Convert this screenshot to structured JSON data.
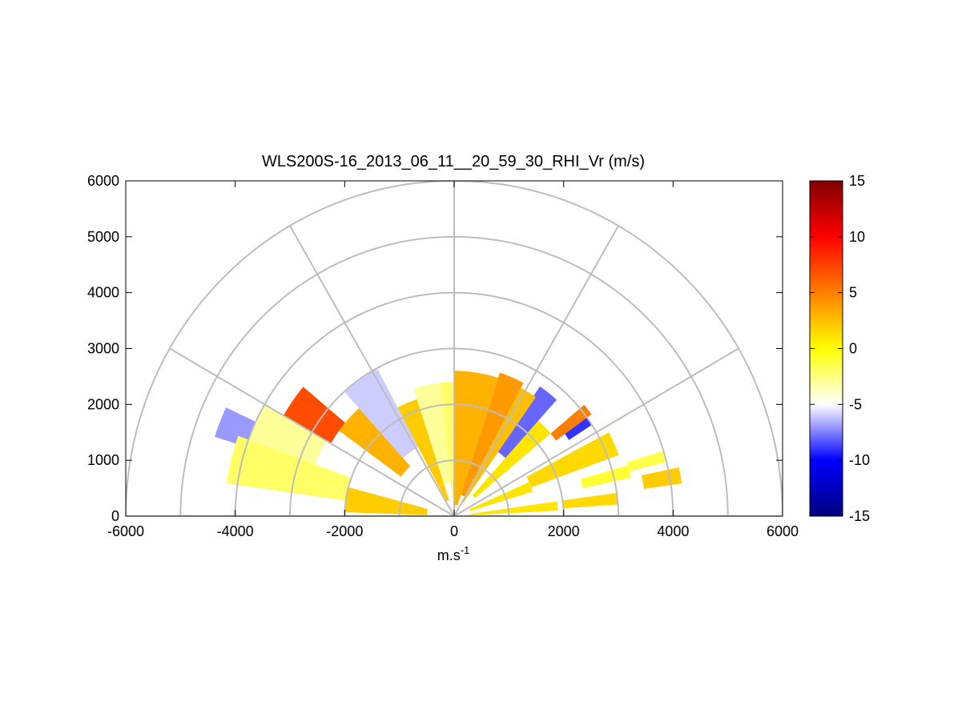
{
  "chart_data": {
    "type": "polar-rhi-sector",
    "title": "WLS200S-16_2013_06_11__20_59_30_RHI_Vr (m/s)",
    "xlabel": "m.s",
    "xlabel_sup": "-1",
    "ylabel": "",
    "xlim": [
      -6000,
      6000
    ],
    "ylim": [
      0,
      6000
    ],
    "xticks": [
      -6000,
      -4000,
      -2000,
      0,
      2000,
      4000,
      6000
    ],
    "yticks": [
      0,
      1000,
      2000,
      3000,
      4000,
      5000,
      6000
    ],
    "range_rings": [
      1000,
      2000,
      3000,
      4000,
      5000,
      6000
    ],
    "radial_spokes_deg": [
      0,
      30,
      60,
      90,
      120,
      150,
      180
    ],
    "colorbar": {
      "clim": [
        -15,
        15
      ],
      "ticks": [
        -15,
        -10,
        -5,
        0,
        5,
        10,
        15
      ],
      "colors": [
        "#00007f",
        "#0000ff",
        "#ffffff",
        "#ffff00",
        "#ff7f00",
        "#ff0000",
        "#7f0000"
      ]
    },
    "sectors": [
      {
        "el": [
          3,
          8
        ],
        "r": [
          300,
          1900
        ],
        "v": 1
      },
      {
        "el": [
          4,
          8
        ],
        "r": [
          2000,
          3000
        ],
        "v": 1.5
      },
      {
        "el": [
          8,
          12
        ],
        "r": [
          3500,
          4200
        ],
        "v": 2
      },
      {
        "el": [
          12,
          16
        ],
        "r": [
          2400,
          3300
        ],
        "v": -1
      },
      {
        "el": [
          14,
          17
        ],
        "r": [
          3300,
          4000
        ],
        "v": -1.5
      },
      {
        "el": [
          17,
          24
        ],
        "r": [
          300,
          1500
        ],
        "v": 1
      },
      {
        "el": [
          20,
          28
        ],
        "r": [
          1500,
          3200
        ],
        "v": 1.5
      },
      {
        "el": [
          28,
          34
        ],
        "r": [
          2600,
          3200
        ],
        "v": -5
      },
      {
        "el": [
          33,
          37
        ],
        "r": [
          2500,
          3000
        ],
        "v": -9
      },
      {
        "el": [
          36,
          40
        ],
        "r": [
          2300,
          3100
        ],
        "v": 5
      },
      {
        "el": [
          40,
          48
        ],
        "r": [
          500,
          2300
        ],
        "v": 1
      },
      {
        "el": [
          48,
          56
        ],
        "r": [
          1400,
          2800
        ],
        "v": -8
      },
      {
        "el": [
          55,
          62
        ],
        "r": [
          300,
          2600
        ],
        "v": 2.5
      },
      {
        "el": [
          62,
          72
        ],
        "r": [
          400,
          2700
        ],
        "v": 4
      },
      {
        "el": [
          72,
          90
        ],
        "r": [
          200,
          2600
        ],
        "v": 3
      },
      {
        "el": [
          90,
          96
        ],
        "r": [
          300,
          2400
        ],
        "v": -2
      },
      {
        "el": [
          96,
          108
        ],
        "r": [
          600,
          2400
        ],
        "v": -3
      },
      {
        "el": [
          108,
          118
        ],
        "r": [
          300,
          2200
        ],
        "v": 2
      },
      {
        "el": [
          118,
          132
        ],
        "r": [
          1400,
          3000
        ],
        "v": -6
      },
      {
        "el": [
          132,
          144
        ],
        "r": [
          1200,
          2600
        ],
        "v": 3
      },
      {
        "el": [
          140,
          150
        ],
        "r": [
          2600,
          3600
        ],
        "v": 7
      },
      {
        "el": [
          150,
          160
        ],
        "r": [
          2700,
          4000
        ],
        "v": -3
      },
      {
        "el": [
          155,
          162
        ],
        "r": [
          4000,
          4600
        ],
        "v": -7
      },
      {
        "el": [
          165,
          178
        ],
        "r": [
          500,
          2000
        ],
        "v": 2
      },
      {
        "el": [
          160,
          172
        ],
        "r": [
          2000,
          4200
        ],
        "v": -2
      }
    ]
  }
}
